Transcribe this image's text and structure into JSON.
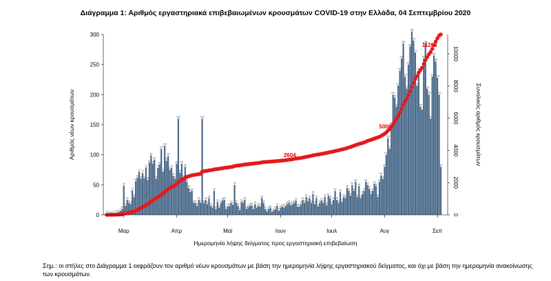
{
  "chart_data": {
    "type": "bar",
    "title": "Διάγραμμα 1: Αριθμός εργαστηριακά επιβεβαιωμένων κρουσμάτων COVID-19 στην Ελλάδα, 04 Σεπτεμβρίου 2020",
    "xlabel": "Ημερομηνία λήψης δείγματος προς εργαστηριακή επιβεβαίωση",
    "ylabel": "Αριθμός νέων κρουσμάτων",
    "y2label": "Συνολικός αριθμός κρουσμάτων",
    "ylim": [
      0,
      300
    ],
    "y2lim": [
      0,
      11200
    ],
    "yticks": [
      0,
      50,
      100,
      150,
      200,
      250,
      300
    ],
    "y2ticks": [
      0,
      2000,
      4000,
      6000,
      8000,
      10000
    ],
    "x_tick_labels": [
      "Μαρ",
      "Απρ",
      "Μαϊ",
      "Ιουν",
      "Ιουλ",
      "Αυγ",
      "Σεπ"
    ],
    "grid": false,
    "bar_color": "#4a6a8a",
    "line_color": "#e41a1c",
    "daily_cases": [
      3,
      2,
      2,
      2,
      2,
      3,
      4,
      5,
      7,
      10,
      49,
      15,
      25,
      20,
      18,
      41,
      30,
      56,
      62,
      72,
      60,
      70,
      61,
      79,
      58,
      87,
      99,
      85,
      92,
      60,
      78,
      84,
      110,
      72,
      115,
      90,
      98,
      75,
      78,
      65,
      60,
      85,
      160,
      70,
      85,
      62,
      80,
      55,
      45,
      38,
      40,
      20,
      20,
      15,
      25,
      20,
      160,
      20,
      25,
      18,
      28,
      15,
      12,
      40,
      10,
      22,
      12,
      20,
      24,
      25,
      10,
      14,
      15,
      20,
      17,
      50,
      20,
      15,
      8,
      22,
      20,
      25,
      10,
      13,
      15,
      16,
      10,
      18,
      12,
      15,
      14,
      28,
      20,
      10,
      6,
      10,
      12,
      5,
      8,
      10,
      15,
      7,
      12,
      14,
      12,
      15,
      18,
      20,
      16,
      18,
      20,
      24,
      14,
      14,
      18,
      25,
      20,
      30,
      23,
      28,
      20,
      35,
      18,
      28,
      14,
      20,
      24,
      20,
      30,
      16,
      32,
      28,
      18,
      25,
      40,
      25,
      20,
      38,
      22,
      30,
      28,
      45,
      40,
      32,
      50,
      40,
      55,
      30,
      48,
      28,
      35,
      40,
      55,
      50,
      44,
      35,
      40,
      52,
      48,
      30,
      55,
      66,
      60,
      80,
      100,
      128,
      110,
      150,
      200,
      195,
      180,
      215,
      240,
      260,
      285,
      230,
      210,
      250,
      280,
      305,
      290,
      270,
      215,
      240,
      180,
      175,
      260,
      285,
      210,
      200,
      160,
      230,
      265,
      255,
      228,
      200,
      80
    ],
    "daily_labels": [
      "3",
      "2",
      "2",
      "2",
      "2",
      "3",
      "4",
      "5",
      "7",
      "10",
      "49",
      "15",
      "25",
      "20",
      "18",
      "41",
      "30",
      "56",
      "62",
      "72",
      "60",
      "70",
      "61",
      "79",
      "58",
      "87",
      "99",
      "85",
      "92",
      "60",
      "78",
      "84",
      "110",
      "72",
      "115",
      "90",
      "98",
      "75",
      "78",
      "65",
      "60",
      "85",
      "160",
      "70",
      "85",
      "62",
      "80",
      "55",
      "45",
      "38",
      "40",
      "20",
      "20",
      "15",
      "25",
      "20",
      "160",
      "20",
      "25",
      "18",
      "28",
      "15",
      "12",
      "40",
      "10",
      "22",
      "12",
      "20",
      "24",
      "25",
      "10",
      "14",
      "15",
      "20",
      "17",
      "50",
      "20",
      "15",
      "8",
      "22",
      "20",
      "25",
      "10",
      "13",
      "15",
      "16",
      "10",
      "18",
      "12",
      "15",
      "14",
      "28",
      "20",
      "10",
      "6",
      "10",
      "12",
      "5",
      "8",
      "10",
      "15",
      "7",
      "12",
      "14",
      "12",
      "15",
      "18",
      "20",
      "16",
      "18",
      "20",
      "24",
      "14",
      "14",
      "18",
      "25",
      "20",
      "30",
      "23",
      "28",
      "20",
      "35",
      "18",
      "28",
      "14",
      "20",
      "24",
      "20",
      "30",
      "16",
      "32",
      "28",
      "18",
      "25",
      "40",
      "25",
      "20",
      "38",
      "22",
      "30",
      "28",
      "45",
      "40",
      "32",
      "50",
      "40",
      "55",
      "30",
      "48",
      "28",
      "35",
      "40",
      "55",
      "50",
      "44",
      "35",
      "40",
      "52",
      "48",
      "30",
      "55",
      "66",
      "60",
      "80",
      "100",
      "128",
      "110",
      "150",
      "200",
      "195",
      "180",
      "215",
      "240",
      "260",
      "285",
      "230",
      "210",
      "250",
      "280",
      "305",
      "290",
      "270",
      "215",
      "240",
      "180",
      "175",
      "260",
      "285",
      "210",
      "200",
      "160",
      "230",
      "265",
      "255",
      "228",
      "200",
      "80"
    ],
    "annotations": [
      "2604",
      "5000",
      "11200"
    ],
    "annotation_days": [
      109,
      165,
      191
    ]
  },
  "footnote": "Σημ.: οι στήλες στο Διάγραμμα 1 εκφράζουν τον αριθμό νέων κρουσμάτων με βάση την ημερομηνία λήψης εργαστηριακού δείγματος, και όχι με βάση την ημερομηνία ανακοίνωσης των κρουσμάτων."
}
